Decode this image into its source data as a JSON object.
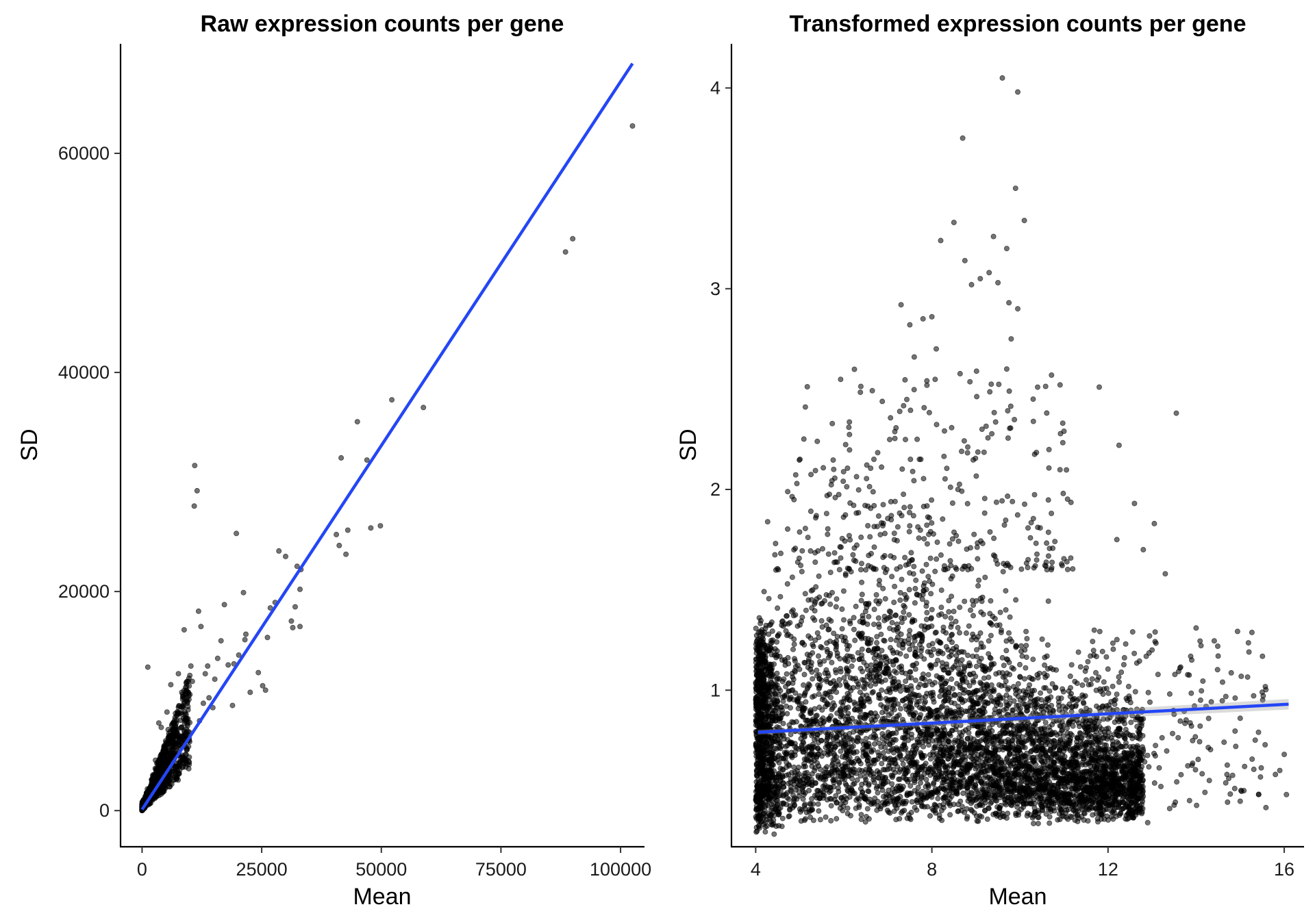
{
  "figure": {
    "background": "#ffffff"
  },
  "chart_data": [
    {
      "type": "scatter",
      "title": "Raw expression counts per gene",
      "xlabel": "Mean",
      "ylabel": "SD",
      "xlim": [
        -4500,
        105000
      ],
      "ylim": [
        -3300,
        70000
      ],
      "xticks": [
        0,
        25000,
        50000,
        75000,
        100000
      ],
      "xtick_labels": [
        "0",
        "25000",
        "50000",
        "75000",
        "100000"
      ],
      "yticks": [
        0,
        20000,
        40000,
        60000
      ],
      "ytick_labels": [
        "0",
        "20000",
        "40000",
        "60000"
      ],
      "grid": false,
      "point_color": "#000000",
      "fit_color": "#2446f5",
      "fit_line": {
        "x0": 0,
        "y0": 100,
        "x1": 102500,
        "y1": 68200
      },
      "cluster_shape": 0.6,
      "dense_cluster": {
        "count": 1400,
        "x_max": 10000,
        "sd_ratio_min": 0.35,
        "sd_ratio_max": 1.25
      },
      "points": [
        [
          102500,
          62500
        ],
        [
          90000,
          52200
        ],
        [
          88500,
          51000
        ],
        [
          58800,
          36800
        ],
        [
          52200,
          37500
        ],
        [
          49800,
          26000
        ],
        [
          47800,
          25800
        ],
        [
          47000,
          32000
        ],
        [
          45000,
          35500
        ],
        [
          43000,
          25600
        ],
        [
          42600,
          23400
        ],
        [
          41600,
          32200
        ],
        [
          41200,
          24200
        ],
        [
          40600,
          25200
        ],
        [
          33200,
          22000
        ],
        [
          33000,
          20200
        ],
        [
          33000,
          16800
        ],
        [
          32400,
          22300
        ],
        [
          32000,
          18600
        ],
        [
          31500,
          16700
        ],
        [
          31200,
          17300
        ],
        [
          30000,
          23200
        ],
        [
          28600,
          23700
        ],
        [
          27800,
          19000
        ],
        [
          26800,
          18500
        ],
        [
          26200,
          15800
        ],
        [
          25800,
          11000
        ],
        [
          25200,
          11400
        ],
        [
          24300,
          12600
        ],
        [
          22600,
          10800
        ],
        [
          21700,
          16100
        ],
        [
          21500,
          15600
        ],
        [
          21200,
          19900
        ],
        [
          20200,
          14200
        ],
        [
          19700,
          25300
        ],
        [
          19200,
          13400
        ],
        [
          18900,
          9600
        ],
        [
          18000,
          13300
        ],
        [
          17200,
          18800
        ],
        [
          16500,
          15500
        ],
        [
          15800,
          13900
        ],
        [
          15200,
          12000
        ],
        [
          14800,
          9400
        ],
        [
          14000,
          10300
        ],
        [
          13700,
          13200
        ],
        [
          13200,
          12500
        ],
        [
          12800,
          9800
        ],
        [
          12300,
          16800
        ],
        [
          12000,
          8200
        ],
        [
          11800,
          18200
        ],
        [
          11500,
          29200
        ],
        [
          11000,
          31500
        ],
        [
          10900,
          27800
        ],
        [
          10500,
          11800
        ],
        [
          10200,
          13200
        ],
        [
          10000,
          10600
        ],
        [
          9600,
          9500
        ],
        [
          8800,
          16500
        ],
        [
          8300,
          10800
        ],
        [
          7600,
          12500
        ],
        [
          6000,
          11500
        ],
        [
          5200,
          9000
        ],
        [
          4000,
          7600
        ],
        [
          1200,
          13100
        ],
        [
          2800,
          4600
        ],
        [
          3500,
          8000
        ]
      ]
    },
    {
      "type": "scatter",
      "title": "Transformed expression counts per gene",
      "xlabel": "Mean",
      "ylabel": "SD",
      "xlim": [
        3.45,
        16.45
      ],
      "ylim": [
        0.22,
        4.22
      ],
      "xticks": [
        4,
        8,
        12,
        16
      ],
      "xtick_labels": [
        "4",
        "8",
        "12",
        "16"
      ],
      "yticks": [
        1,
        2,
        3,
        4
      ],
      "ytick_labels": [
        "1",
        "2",
        "3",
        "4"
      ],
      "grid": false,
      "point_color": "#000000",
      "fit_color": "#2446f5",
      "fit_line": {
        "x0": 4.05,
        "y0": 0.79,
        "x1": 16.1,
        "y1": 0.93
      },
      "fit_band_halfwidth": 0.012,
      "dense_cloud": {
        "count": 5200,
        "x_min": 4.0,
        "x_max": 12.8,
        "sd_min": 0.33,
        "sd_max": 1.95,
        "sd_floor_at_x_min": 0.27
      },
      "points": [
        [
          9.6,
          4.05
        ],
        [
          9.95,
          3.98
        ],
        [
          8.7,
          3.75
        ],
        [
          9.9,
          3.5
        ],
        [
          10.1,
          3.34
        ],
        [
          8.5,
          3.33
        ],
        [
          9.4,
          3.26
        ],
        [
          9.7,
          3.2
        ],
        [
          8.2,
          3.24
        ],
        [
          8.75,
          3.14
        ],
        [
          9.1,
          3.05
        ],
        [
          9.3,
          3.08
        ],
        [
          9.5,
          3.03
        ],
        [
          9.75,
          2.93
        ],
        [
          9.95,
          2.9
        ],
        [
          8.9,
          3.02
        ],
        [
          7.3,
          2.92
        ],
        [
          7.8,
          2.85
        ],
        [
          8.0,
          2.86
        ],
        [
          7.5,
          2.82
        ],
        [
          9.8,
          2.75
        ],
        [
          8.1,
          2.7
        ],
        [
          7.6,
          2.66
        ],
        [
          9.7,
          2.6
        ],
        [
          10.3,
          2.45
        ],
        [
          11.0,
          2.29
        ],
        [
          11.8,
          2.51
        ],
        [
          13.55,
          2.38
        ],
        [
          12.25,
          2.22
        ],
        [
          12.6,
          1.93
        ],
        [
          13.05,
          1.83
        ],
        [
          13.3,
          1.58
        ],
        [
          12.8,
          1.7
        ],
        [
          12.2,
          1.75
        ],
        [
          14.0,
          1.31
        ],
        [
          15.2,
          1.19
        ],
        [
          14.5,
          1.17
        ],
        [
          15.5,
          0.99
        ],
        [
          15.9,
          0.6
        ],
        [
          16.05,
          0.48
        ],
        [
          15.8,
          0.58
        ],
        [
          16.0,
          0.68
        ],
        [
          14.7,
          0.58
        ],
        [
          15.1,
          0.62
        ],
        [
          13.2,
          0.52
        ],
        [
          12.9,
          0.34
        ],
        [
          13.85,
          0.45
        ],
        [
          14.3,
          0.55
        ],
        [
          14.9,
          0.72
        ],
        [
          13.5,
          0.88
        ],
        [
          14.1,
          0.95
        ],
        [
          15.0,
          0.86
        ],
        [
          12.4,
          1.23
        ],
        [
          13.0,
          1.2
        ],
        [
          13.9,
          1.15
        ],
        [
          14.6,
          1.04
        ]
      ],
      "right_tail": {
        "count": 170,
        "x_min": 11.5,
        "x_max": 15.6,
        "sd_min": 0.4,
        "sd_max": 1.3
      },
      "upper_scatter": {
        "count": 260,
        "x_min": 4.8,
        "x_max": 11.2,
        "sd_min": 1.6,
        "sd_max": 2.6
      }
    }
  ]
}
